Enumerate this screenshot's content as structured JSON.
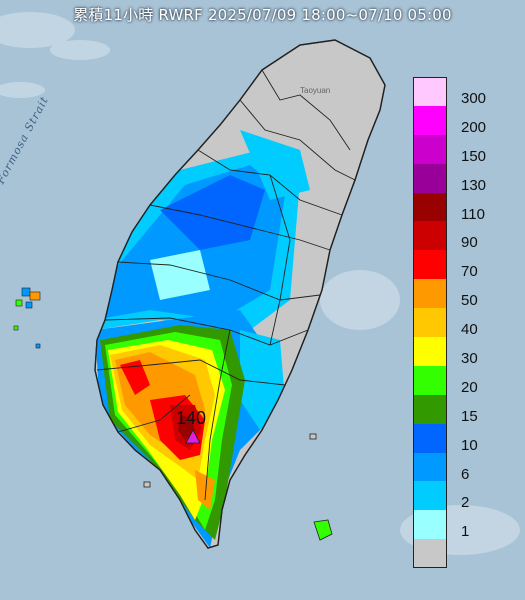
{
  "title": "累積11小時 RWRF 2025/07/09 18:00~07/10 05:00",
  "sea_label": "Formosa Strait",
  "city_label": "Taoyuan",
  "peak": {
    "value": "140",
    "marker_color": "#e020e0"
  },
  "colors": {
    "sea": "#a9c3d6",
    "land_no_rain": "#c8c8c8",
    "border": "#222222"
  },
  "legend": [
    {
      "label": "300",
      "color": "#ffc8ff"
    },
    {
      "label": "200",
      "color": "#ff00ff"
    },
    {
      "label": "150",
      "color": "#cc00cc"
    },
    {
      "label": "130",
      "color": "#990099"
    },
    {
      "label": "110",
      "color": "#990000"
    },
    {
      "label": "90",
      "color": "#cc0000"
    },
    {
      "label": "70",
      "color": "#ff0000"
    },
    {
      "label": "50",
      "color": "#ff9900"
    },
    {
      "label": "40",
      "color": "#ffc800"
    },
    {
      "label": "30",
      "color": "#ffff00"
    },
    {
      "label": "20",
      "color": "#33ff00"
    },
    {
      "label": "15",
      "color": "#339900"
    },
    {
      "label": "10",
      "color": "#0066ff"
    },
    {
      "label": "6",
      "color": "#0099ff"
    },
    {
      "label": "2",
      "color": "#00ccff"
    },
    {
      "label": "1",
      "color": "#99ffff"
    },
    {
      "label": "",
      "color": "#c8c8c8"
    }
  ]
}
